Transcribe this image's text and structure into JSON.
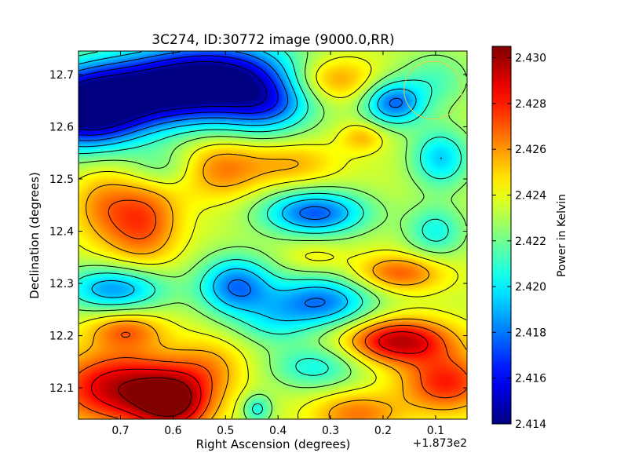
{
  "chart_data": {
    "type": "heatmap",
    "title": "3C274, ID:30772 image (9000.0,RR)",
    "xlabel": "Right Ascension (degrees)",
    "ylabel": "Declination (degrees)",
    "x_offset_label": "+1.873e2",
    "colorbar_label": "Power in Kelvin",
    "xlim": [
      0.78,
      0.04
    ],
    "ylim": [
      12.04,
      12.745
    ],
    "x_ticks": [
      0.7,
      0.6,
      0.5,
      0.4,
      0.3,
      0.2,
      0.1
    ],
    "x_tick_labels": [
      "0.7",
      "0.6",
      "0.5",
      "0.4",
      "0.3",
      "0.2",
      "0.1"
    ],
    "y_ticks": [
      12.1,
      12.2,
      12.3,
      12.4,
      12.5,
      12.6,
      12.7
    ],
    "y_tick_labels": [
      "12.1",
      "12.2",
      "12.3",
      "12.4",
      "12.5",
      "12.6",
      "12.7"
    ],
    "clim": [
      2.414,
      2.4305
    ],
    "colorbar_ticks": [
      2.414,
      2.416,
      2.418,
      2.42,
      2.422,
      2.424,
      2.426,
      2.428,
      2.43
    ],
    "colorbar_tick_labels": [
      "2.414",
      "2.416",
      "2.418",
      "2.420",
      "2.422",
      "2.424",
      "2.426",
      "2.428",
      "2.430"
    ],
    "colormap": "jet",
    "contours": true,
    "background_level": 2.4235,
    "features": [
      {
        "ra": 0.77,
        "dec": 12.63,
        "value": 2.414,
        "sx": 0.08,
        "sy": 0.05
      },
      {
        "ra": 0.62,
        "dec": 12.67,
        "value": 2.4155,
        "sx": 0.12,
        "sy": 0.05
      },
      {
        "ra": 0.5,
        "dec": 12.7,
        "value": 2.4175,
        "sx": 0.1,
        "sy": 0.05
      },
      {
        "ra": 0.42,
        "dec": 12.64,
        "value": 2.4195,
        "sx": 0.06,
        "sy": 0.04
      },
      {
        "ra": 0.3,
        "dec": 12.69,
        "value": 2.4265,
        "sx": 0.06,
        "sy": 0.03
      },
      {
        "ra": 0.18,
        "dec": 12.645,
        "value": 2.418,
        "sx": 0.04,
        "sy": 0.03
      },
      {
        "ra": 0.1,
        "dec": 12.69,
        "value": 2.4215,
        "sx": 0.05,
        "sy": 0.04
      },
      {
        "ra": 0.24,
        "dec": 12.58,
        "value": 2.4255,
        "sx": 0.03,
        "sy": 0.02
      },
      {
        "ra": 0.09,
        "dec": 12.54,
        "value": 2.4195,
        "sx": 0.04,
        "sy": 0.04
      },
      {
        "ra": 0.51,
        "dec": 12.52,
        "value": 2.4265,
        "sx": 0.06,
        "sy": 0.04
      },
      {
        "ra": 0.37,
        "dec": 12.53,
        "value": 2.4255,
        "sx": 0.06,
        "sy": 0.03
      },
      {
        "ra": 0.66,
        "dec": 12.42,
        "value": 2.4275,
        "sx": 0.05,
        "sy": 0.06
      },
      {
        "ra": 0.74,
        "dec": 12.45,
        "value": 2.4255,
        "sx": 0.04,
        "sy": 0.05
      },
      {
        "ra": 0.33,
        "dec": 12.435,
        "value": 2.4175,
        "sx": 0.07,
        "sy": 0.03
      },
      {
        "ra": 0.1,
        "dec": 12.4,
        "value": 2.4205,
        "sx": 0.04,
        "sy": 0.035
      },
      {
        "ra": 0.71,
        "dec": 12.29,
        "value": 2.4185,
        "sx": 0.07,
        "sy": 0.03
      },
      {
        "ra": 0.48,
        "dec": 12.295,
        "value": 2.418,
        "sx": 0.05,
        "sy": 0.04
      },
      {
        "ra": 0.32,
        "dec": 12.265,
        "value": 2.418,
        "sx": 0.07,
        "sy": 0.035
      },
      {
        "ra": 0.33,
        "dec": 12.35,
        "value": 2.4245,
        "sx": 0.04,
        "sy": 0.02
      },
      {
        "ra": 0.17,
        "dec": 12.32,
        "value": 2.427,
        "sx": 0.06,
        "sy": 0.025
      },
      {
        "ra": 0.17,
        "dec": 12.19,
        "value": 2.4295,
        "sx": 0.07,
        "sy": 0.03
      },
      {
        "ra": 0.08,
        "dec": 12.11,
        "value": 2.428,
        "sx": 0.06,
        "sy": 0.04
      },
      {
        "ra": 0.7,
        "dec": 12.1,
        "value": 2.4295,
        "sx": 0.09,
        "sy": 0.05
      },
      {
        "ra": 0.6,
        "dec": 12.07,
        "value": 2.429,
        "sx": 0.05,
        "sy": 0.04
      },
      {
        "ra": 0.69,
        "dec": 12.21,
        "value": 2.4265,
        "sx": 0.05,
        "sy": 0.025
      },
      {
        "ra": 0.53,
        "dec": 12.14,
        "value": 2.4255,
        "sx": 0.05,
        "sy": 0.04
      },
      {
        "ra": 0.33,
        "dec": 12.14,
        "value": 2.4205,
        "sx": 0.06,
        "sy": 0.03
      },
      {
        "ra": 0.44,
        "dec": 12.06,
        "value": 2.4205,
        "sx": 0.02,
        "sy": 0.02
      },
      {
        "ra": 0.25,
        "dec": 12.05,
        "value": 2.4265,
        "sx": 0.06,
        "sy": 0.03
      },
      {
        "ra": 0.62,
        "dec": 12.52,
        "value": 2.4215,
        "sx": 0.05,
        "sy": 0.03
      },
      {
        "ra": 0.41,
        "dec": 12.22,
        "value": 2.4215,
        "sx": 0.05,
        "sy": 0.03
      }
    ],
    "annotation_circle": {
      "ra": 0.105,
      "dec": 12.67,
      "radius": 0.055,
      "color": "#e8c84a"
    }
  }
}
